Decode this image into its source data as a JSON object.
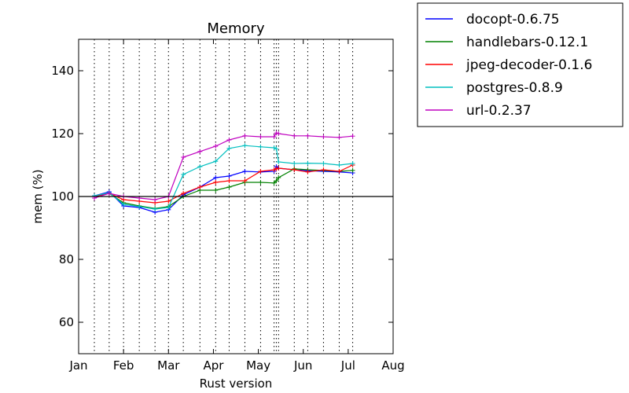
{
  "chart_data": {
    "type": "line",
    "title": "Memory",
    "xlabel": "Rust version",
    "ylabel": "mem (%)",
    "ylim": [
      50,
      150
    ],
    "xlim": [
      "Jan",
      "Aug"
    ],
    "x_ticks": [
      "Jan",
      "Feb",
      "Mar",
      "Apr",
      "May",
      "Jun",
      "Jul",
      "Aug"
    ],
    "y_ticks": [
      60,
      80,
      100,
      120,
      140
    ],
    "legend_position": "outside-top-right",
    "reference_line": 100,
    "release_dates_months": [
      0.35,
      0.68,
      1.0,
      1.35,
      1.7,
      2.0,
      2.33,
      2.7,
      3.05,
      3.35,
      3.7,
      4.05,
      4.35,
      4.4,
      4.45,
      4.8,
      5.1,
      5.45,
      5.8,
      6.1
    ],
    "x": [
      0.35,
      0.68,
      1.0,
      1.35,
      1.7,
      2.0,
      2.33,
      2.7,
      3.05,
      3.35,
      3.7,
      4.05,
      4.35,
      4.4,
      4.45,
      4.8,
      5.1,
      5.45,
      5.8,
      6.1
    ],
    "series": [
      {
        "name": "docopt-0.6.75",
        "color": "#0000ff",
        "values": [
          100.2,
          101.5,
          97.0,
          96.5,
          95.0,
          95.8,
          100.5,
          103.0,
          106.0,
          106.5,
          108.0,
          107.8,
          108.0,
          109.5,
          109.0,
          108.5,
          108.2,
          108.0,
          107.8,
          107.5
        ]
      },
      {
        "name": "handlebars-0.12.1",
        "color": "#008000",
        "values": [
          100.0,
          101.0,
          98.0,
          97.0,
          96.2,
          96.8,
          100.0,
          102.0,
          102.0,
          103.0,
          104.5,
          104.5,
          104.3,
          105.0,
          106.0,
          108.8,
          108.5,
          108.3,
          108.0,
          108.3
        ]
      },
      {
        "name": "jpeg-decoder-0.1.6",
        "color": "#ff0000",
        "values": [
          100.0,
          101.0,
          99.0,
          98.5,
          98.0,
          98.5,
          101.0,
          103.0,
          104.5,
          105.0,
          105.0,
          108.0,
          108.5,
          108.8,
          109.0,
          108.5,
          107.8,
          108.5,
          108.0,
          110.0
        ]
      },
      {
        "name": "postgres-0.8.9",
        "color": "#00bfbf",
        "values": [
          100.2,
          101.2,
          97.5,
          96.8,
          96.0,
          96.5,
          107.0,
          109.5,
          111.2,
          115.3,
          116.2,
          115.8,
          115.5,
          115.2,
          111.0,
          110.5,
          110.6,
          110.5,
          110.0,
          110.5
        ]
      },
      {
        "name": "url-0.2.37",
        "color": "#bf00bf",
        "values": [
          99.5,
          101.0,
          100.0,
          99.5,
          99.0,
          100.0,
          112.5,
          114.3,
          116.0,
          118.0,
          119.3,
          119.0,
          119.0,
          120.2,
          120.0,
          119.3,
          119.3,
          119.0,
          118.8,
          119.2
        ]
      }
    ]
  }
}
